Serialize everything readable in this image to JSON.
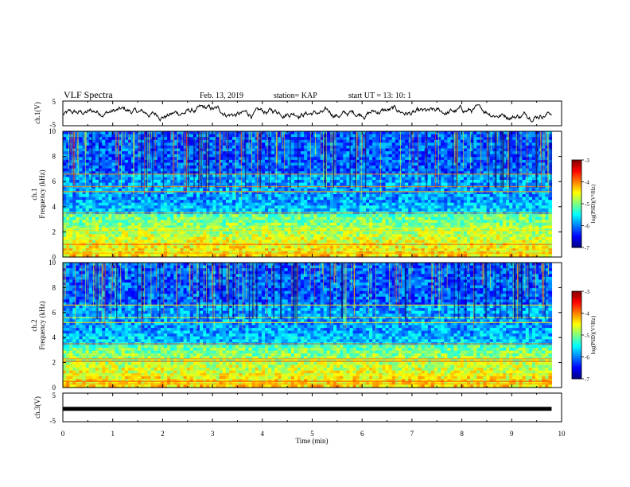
{
  "header": {
    "title": "VLF Spectra",
    "date": "Feb. 13, 2019",
    "station": "station= KAP",
    "start": "start  UT =   13: 10: 1"
  },
  "chart_data": [
    {
      "type": "line",
      "id": "ch1-waveform",
      "ylabel": "ch.1(V)",
      "ylim": [
        -5,
        5
      ],
      "yticks": [
        "5",
        "-5"
      ],
      "xlim": [
        0,
        10
      ],
      "x_range_data": [
        0,
        9.8
      ],
      "description_values": {
        "center_V": 0.3,
        "amplitude_V": 3.5
      }
    },
    {
      "type": "heatmap",
      "id": "ch1-spectrogram",
      "ylabel": "ch.1\nFrequency (kHz)",
      "ylim": [
        0,
        10
      ],
      "yticks": [
        "0",
        "2",
        "4",
        "6",
        "8",
        "10"
      ],
      "xlim": [
        0,
        10
      ],
      "x_range_data": [
        0,
        9.8
      ],
      "colorbar": {
        "label": "log(PSD)(V²/Hz)",
        "range": [
          -7,
          -3
        ],
        "ticks": [
          "-3",
          "-4",
          "-5",
          "-6",
          "-7"
        ]
      }
    },
    {
      "type": "heatmap",
      "id": "ch2-spectrogram",
      "ylabel": "ch.2\nFrequency (kHz)",
      "ylim": [
        0,
        10
      ],
      "yticks": [
        "0",
        "2",
        "4",
        "6",
        "8",
        "10"
      ],
      "xlim": [
        0,
        10
      ],
      "x_range_data": [
        0,
        9.8
      ],
      "colorbar": {
        "label": "log(PSD)(V²/Hz)",
        "range": [
          -7,
          -3
        ],
        "ticks": [
          "-3",
          "-4",
          "-5",
          "-6",
          "-7"
        ]
      }
    },
    {
      "type": "line",
      "id": "ch3-waveform",
      "ylabel": "ch.3(V)",
      "ylim": [
        -5,
        5
      ],
      "yticks": [
        "5",
        "-5"
      ],
      "xlim": [
        0,
        10
      ],
      "x_range_data": [
        0,
        9.8
      ],
      "constant_value_V": -0.5
    }
  ],
  "xaxis": {
    "label": "Time  (min)",
    "ticks": [
      "0",
      "1",
      "2",
      "3",
      "4",
      "5",
      "6",
      "7",
      "8",
      "9",
      "10"
    ]
  }
}
